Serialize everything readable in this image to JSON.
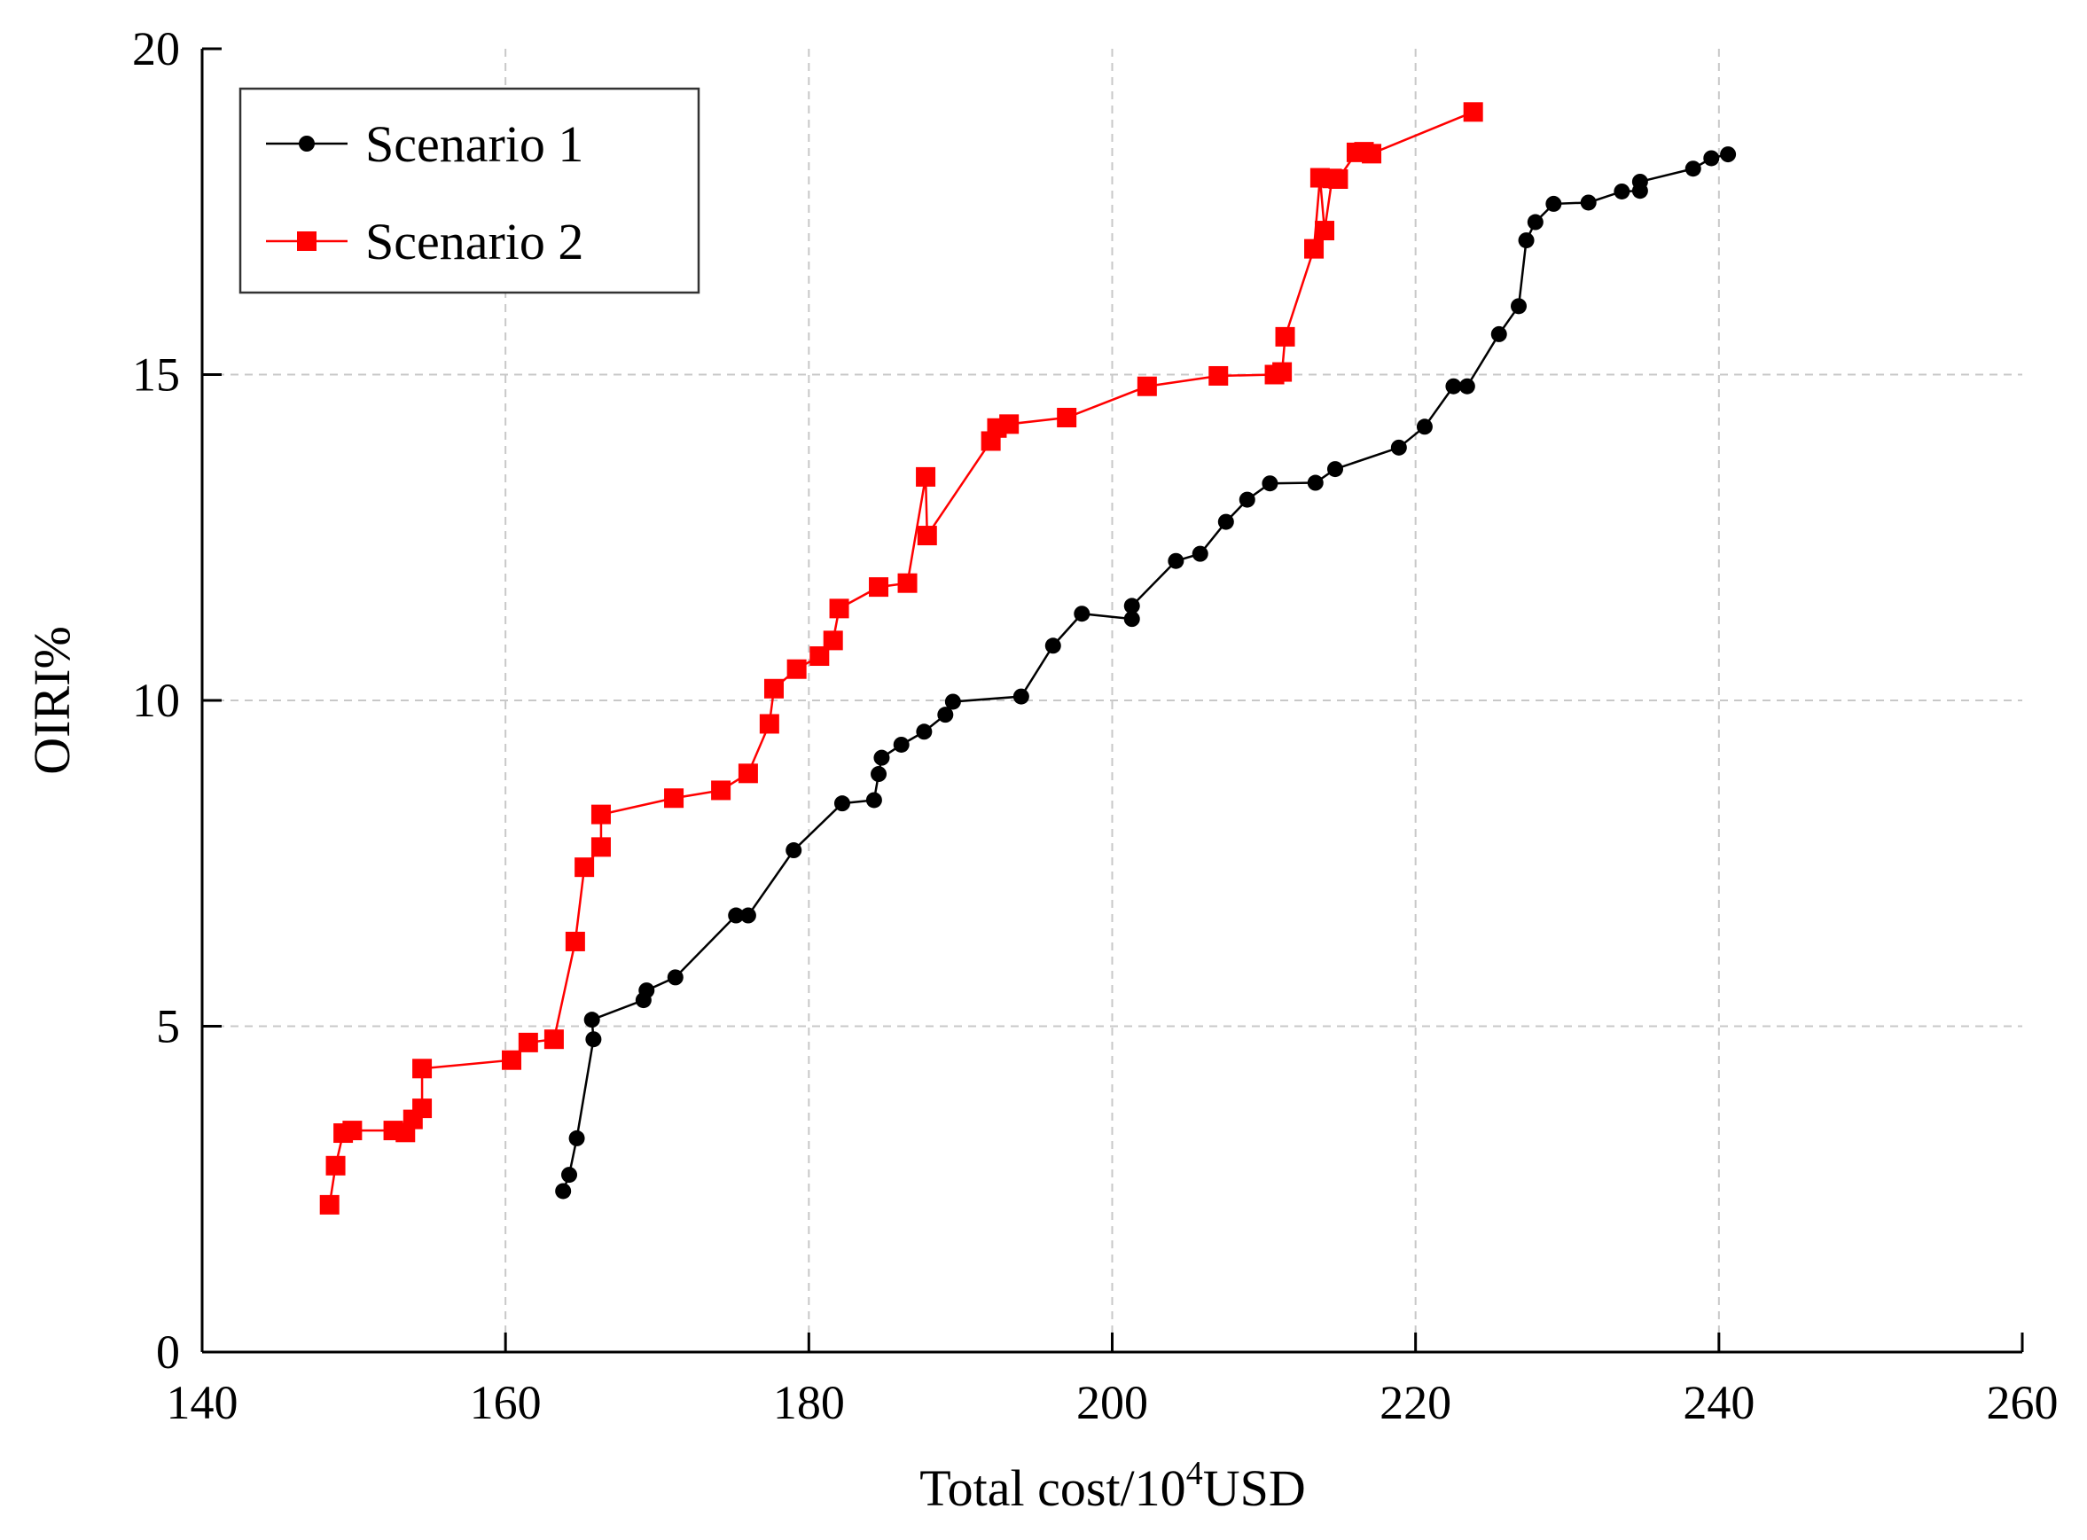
{
  "chart_data": {
    "type": "line",
    "title": "",
    "xlabel": "Total cost/10",
    "xlabel_sup": "4",
    "xlabel_suffix": "USD",
    "ylabel": "OIRI%",
    "xlim": [
      140,
      260
    ],
    "ylim": [
      0,
      20
    ],
    "xticks": [
      "140",
      "160",
      "180",
      "200",
      "220",
      "240",
      "260"
    ],
    "yticks": [
      "0",
      "5",
      "10",
      "15",
      "20"
    ],
    "grid": true,
    "legend_position": "top-left",
    "series": [
      {
        "name": "Scenario 1",
        "color": "#000000",
        "marker": "circle",
        "x": [
          163.8,
          164.2,
          164.7,
          165.8,
          165.7,
          169.1,
          169.3,
          171.2,
          175.2,
          176.0,
          179.0,
          182.2,
          184.3,
          184.6,
          184.8,
          186.1,
          187.6,
          189.0,
          189.5,
          194.0,
          196.1,
          198.0,
          201.3,
          201.3,
          204.2,
          205.8,
          207.5,
          208.9,
          210.4,
          213.4,
          214.7,
          218.9,
          220.6,
          222.5,
          223.4,
          225.5,
          226.8,
          227.3,
          227.9,
          229.1,
          231.4,
          233.6,
          234.8,
          234.8,
          238.3,
          239.5,
          240.6
        ],
        "y": [
          2.47,
          2.72,
          3.28,
          4.8,
          5.1,
          5.4,
          5.55,
          5.75,
          6.7,
          6.7,
          7.7,
          8.42,
          8.47,
          8.87,
          9.12,
          9.32,
          9.52,
          9.78,
          9.98,
          10.06,
          10.84,
          11.33,
          11.25,
          11.45,
          12.14,
          12.25,
          12.74,
          13.08,
          13.33,
          13.34,
          13.55,
          13.88,
          14.2,
          14.82,
          14.82,
          15.62,
          16.05,
          17.06,
          17.34,
          17.62,
          17.64,
          17.81,
          17.82,
          17.96,
          18.16,
          18.32,
          18.38
        ]
      },
      {
        "name": "Scenario 2",
        "color": "#ff0000",
        "marker": "square",
        "x": [
          148.4,
          148.8,
          149.3,
          149.9,
          152.6,
          153.4,
          153.9,
          154.5,
          154.5,
          160.4,
          161.5,
          163.2,
          164.6,
          165.2,
          166.3,
          166.3,
          171.1,
          174.2,
          176.0,
          177.4,
          177.7,
          179.2,
          180.7,
          181.6,
          182.0,
          184.6,
          186.5,
          187.7,
          187.8,
          192.0,
          192.4,
          193.2,
          197.0,
          202.3,
          207.0,
          210.7,
          211.2,
          211.4,
          213.3,
          213.7,
          214.0,
          214.5,
          214.9,
          216.1,
          216.6,
          217.1,
          223.8
        ],
        "y": [
          2.26,
          2.86,
          3.36,
          3.4,
          3.4,
          3.37,
          3.57,
          3.74,
          4.35,
          4.48,
          4.75,
          4.8,
          6.3,
          7.44,
          7.75,
          8.25,
          8.5,
          8.62,
          8.88,
          9.64,
          10.18,
          10.48,
          10.68,
          10.92,
          11.41,
          11.74,
          11.8,
          13.43,
          12.53,
          13.98,
          14.18,
          14.24,
          14.34,
          14.82,
          14.98,
          15.0,
          15.04,
          15.58,
          16.93,
          18.02,
          17.21,
          18.01,
          18.0,
          18.41,
          18.42,
          18.39,
          19.03
        ]
      }
    ]
  }
}
